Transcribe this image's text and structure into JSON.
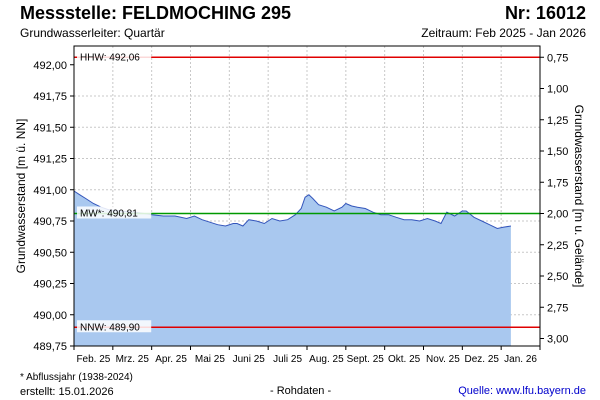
{
  "header": {
    "title": "Messstelle: FELDMOCHING 295",
    "number": "Nr: 16012",
    "subtitle": "Grundwasserleiter: Quartär",
    "period": "Zeitraum: Feb 2025 - Jan 2026"
  },
  "footer": {
    "note": "* Abflussjahr (1938-2024)",
    "created": "erstellt:  15.01.2026",
    "center": "- Rohdaten -",
    "source": "Quelle:  www.lfu.bayern.de"
  },
  "colors": {
    "fill": "#a9c8ef",
    "line": "#3355bb",
    "hhw": "#e00000",
    "nnw": "#e00000",
    "mw": "#009900",
    "grid": "#c8c8c8"
  },
  "chart_data": {
    "type": "area",
    "ylabel_left": "Grundwasserstand [m ü. NN]",
    "ylabel_right": "Grundwasserstand [m u. Gelände]",
    "ylim": [
      489.75,
      492.15
    ],
    "yticks_left": [
      "492,00",
      "491,75",
      "491,50",
      "491,25",
      "491,00",
      "490,75",
      "490,50",
      "490,25",
      "490,00",
      "489,75"
    ],
    "yticks_left_values": [
      492.0,
      491.75,
      491.5,
      491.25,
      491.0,
      490.75,
      490.5,
      490.25,
      490.0,
      489.75
    ],
    "yticks_right": [
      "0,75",
      "1,00",
      "1,25",
      "1,50",
      "1,75",
      "2,00",
      "2,25",
      "2,50",
      "2,75",
      "3,00"
    ],
    "yticks_right_values": [
      0.75,
      1.0,
      1.25,
      1.5,
      1.75,
      2.0,
      2.25,
      2.5,
      2.75,
      3.0
    ],
    "right_axis_reference": 492.81,
    "x_months": [
      "Feb. 25",
      "Mrz. 25",
      "Apr. 25",
      "Mai 25",
      "Juni 25",
      "Juli 25",
      "Aug. 25",
      "Sept. 25",
      "Okt. 25",
      "Nov. 25",
      "Dez. 25",
      "Jan. 26"
    ],
    "grid": true,
    "reference_lines": [
      {
        "label": "HHW: 492,06",
        "value": 492.06,
        "color": "#e00000"
      },
      {
        "label": "MW*: 490,81",
        "value": 490.81,
        "color": "#009900"
      },
      {
        "label": "NNW: 489,90",
        "value": 489.9,
        "color": "#e00000"
      }
    ],
    "series": [
      {
        "x": [
          0.0,
          0.15,
          0.3,
          0.5,
          0.7,
          0.9,
          1.2,
          1.6,
          2.0,
          2.3,
          2.6,
          2.9,
          3.1,
          3.3,
          3.5,
          3.7,
          3.9,
          4.1,
          4.2,
          4.35,
          4.5,
          4.7,
          4.9,
          5.1,
          5.3,
          5.5,
          5.7,
          5.85,
          5.95,
          6.05,
          6.15,
          6.3,
          6.5,
          6.7,
          6.9,
          7.0,
          7.15,
          7.3,
          7.5,
          7.7,
          7.9,
          8.1,
          8.3,
          8.5,
          8.7,
          8.9,
          9.1,
          9.3,
          9.45,
          9.6,
          9.8,
          10.0,
          10.1,
          10.3,
          10.5,
          10.7,
          10.9,
          11.05,
          11.25
        ],
        "y": [
          490.99,
          490.96,
          490.93,
          490.89,
          490.86,
          490.84,
          490.83,
          490.82,
          490.8,
          490.79,
          490.79,
          490.77,
          490.79,
          490.76,
          490.74,
          490.72,
          490.71,
          490.73,
          490.73,
          490.71,
          490.76,
          490.75,
          490.73,
          490.77,
          490.75,
          490.76,
          490.8,
          490.85,
          490.94,
          490.96,
          490.93,
          490.88,
          490.86,
          490.83,
          490.86,
          490.89,
          490.87,
          490.86,
          490.85,
          490.82,
          490.8,
          490.8,
          490.78,
          490.76,
          490.76,
          490.75,
          490.77,
          490.75,
          490.73,
          490.82,
          490.79,
          490.83,
          490.83,
          490.78,
          490.75,
          490.72,
          490.69,
          490.7,
          490.71
        ]
      }
    ]
  }
}
